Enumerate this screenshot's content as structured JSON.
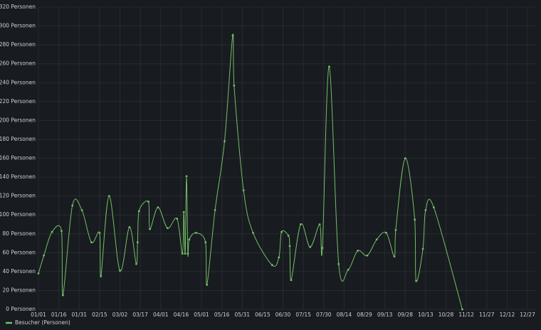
{
  "chart_data": {
    "type": "line",
    "x": [
      0,
      4,
      10,
      17,
      18,
      25,
      32,
      39,
      45,
      46,
      52,
      60,
      67,
      72,
      73,
      74,
      81,
      82,
      88,
      95,
      102,
      106,
      107,
      108,
      109,
      110,
      111,
      116,
      123,
      124,
      130,
      137,
      143,
      144,
      151,
      158,
      172,
      177,
      179,
      184,
      185,
      186,
      193,
      200,
      207,
      209,
      214,
      221,
      228,
      235,
      242,
      249,
      256,
      262,
      263,
      270,
      277,
      278,
      283,
      285,
      291,
      312
    ],
    "series": [
      {
        "name": "Besucher (Personen)",
        "color": "#73bf69",
        "values": [
          38,
          57,
          82,
          83,
          15,
          110,
          105,
          71,
          81,
          35,
          120,
          41,
          87,
          48,
          71,
          104,
          114,
          85,
          108,
          86,
          96,
          59,
          103,
          59,
          141,
          59,
          74,
          81,
          71,
          26,
          105,
          178,
          290,
          237,
          126,
          81,
          47,
          55,
          82,
          78,
          67,
          31,
          90,
          66,
          90,
          65,
          257,
          48,
          42,
          62,
          57,
          74,
          81,
          56,
          84,
          160,
          95,
          30,
          64,
          105,
          108,
          0
        ]
      }
    ],
    "xlim": [
      0,
      366
    ],
    "xticks": [
      {
        "value": 0,
        "label": "01/01"
      },
      {
        "value": 15,
        "label": "01/16"
      },
      {
        "value": 30,
        "label": "01/31"
      },
      {
        "value": 45,
        "label": "02/15"
      },
      {
        "value": 60,
        "label": "03/02"
      },
      {
        "value": 75,
        "label": "03/17"
      },
      {
        "value": 90,
        "label": "04/01"
      },
      {
        "value": 105,
        "label": "04/16"
      },
      {
        "value": 120,
        "label": "05/01"
      },
      {
        "value": 135,
        "label": "05/16"
      },
      {
        "value": 150,
        "label": "05/31"
      },
      {
        "value": 165,
        "label": "06/15"
      },
      {
        "value": 180,
        "label": "06/30"
      },
      {
        "value": 195,
        "label": "07/15"
      },
      {
        "value": 210,
        "label": "07/30"
      },
      {
        "value": 225,
        "label": "08/14"
      },
      {
        "value": 240,
        "label": "08/29"
      },
      {
        "value": 255,
        "label": "09/13"
      },
      {
        "value": 270,
        "label": "09/28"
      },
      {
        "value": 285,
        "label": "10/13"
      },
      {
        "value": 300,
        "label": "10/28"
      },
      {
        "value": 315,
        "label": "11/12"
      },
      {
        "value": 330,
        "label": "11/27"
      },
      {
        "value": 345,
        "label": "12/12"
      },
      {
        "value": 360,
        "label": "12/27"
      }
    ],
    "ylim": [
      0,
      320
    ],
    "yticks": [
      {
        "value": 0,
        "label": "0 Personen"
      },
      {
        "value": 20,
        "label": "20 Personen"
      },
      {
        "value": 40,
        "label": "40 Personen"
      },
      {
        "value": 60,
        "label": "60 Personen"
      },
      {
        "value": 80,
        "label": "80 Personen"
      },
      {
        "value": 100,
        "label": "100 Personen"
      },
      {
        "value": 120,
        "label": "120 Personen"
      },
      {
        "value": 140,
        "label": "140 Personen"
      },
      {
        "value": 160,
        "label": "160 Personen"
      },
      {
        "value": 180,
        "label": "180 Personen"
      },
      {
        "value": 200,
        "label": "200 Personen"
      },
      {
        "value": 220,
        "label": "220 Personen"
      },
      {
        "value": 240,
        "label": "240 Personen"
      },
      {
        "value": 260,
        "label": "260 Personen"
      },
      {
        "value": 280,
        "label": "280 Personen"
      },
      {
        "value": 300,
        "label": "300 Personen"
      },
      {
        "value": 320,
        "label": "320 Personen"
      }
    ],
    "grid": true,
    "smooth": true,
    "legend": "bottom-left"
  }
}
